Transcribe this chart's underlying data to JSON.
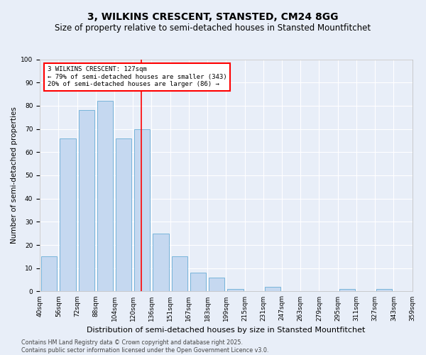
{
  "title1": "3, WILKINS CRESCENT, STANSTED, CM24 8GG",
  "title2": "Size of property relative to semi-detached houses in Stansted Mountfitchet",
  "xlabel": "Distribution of semi-detached houses by size in Stansted Mountfitchet",
  "ylabel": "Number of semi-detached properties",
  "bin_labels": [
    "40sqm",
    "56sqm",
    "72sqm",
    "88sqm",
    "104sqm",
    "120sqm",
    "136sqm",
    "151sqm",
    "167sqm",
    "183sqm",
    "199sqm",
    "215sqm",
    "231sqm",
    "247sqm",
    "263sqm",
    "279sqm",
    "295sqm",
    "311sqm",
    "327sqm",
    "343sqm",
    "359sqm"
  ],
  "bar_heights": [
    15,
    66,
    78,
    82,
    66,
    70,
    25,
    15,
    8,
    6,
    1,
    0,
    2,
    0,
    0,
    0,
    1,
    0,
    1,
    0
  ],
  "bar_color": "#c5d8f0",
  "bar_edge_color": "#6aaed6",
  "annotation_title": "3 WILKINS CRESCENT: 127sqm",
  "annotation_line1": "← 79% of semi-detached houses are smaller (343)",
  "annotation_line2": "20% of semi-detached houses are larger (86) →",
  "footer": "Contains HM Land Registry data © Crown copyright and database right 2025.\nContains public sector information licensed under the Open Government Licence v3.0.",
  "ylim": [
    0,
    100
  ],
  "background_color": "#e8eef8",
  "plot_background": "#e8eef8",
  "grid_color": "#ffffff",
  "title1_fontsize": 10,
  "title2_fontsize": 8.5,
  "xlabel_fontsize": 8,
  "ylabel_fontsize": 7.5,
  "tick_fontsize": 6.5,
  "footer_fontsize": 5.8,
  "annotation_fontsize": 6.5
}
